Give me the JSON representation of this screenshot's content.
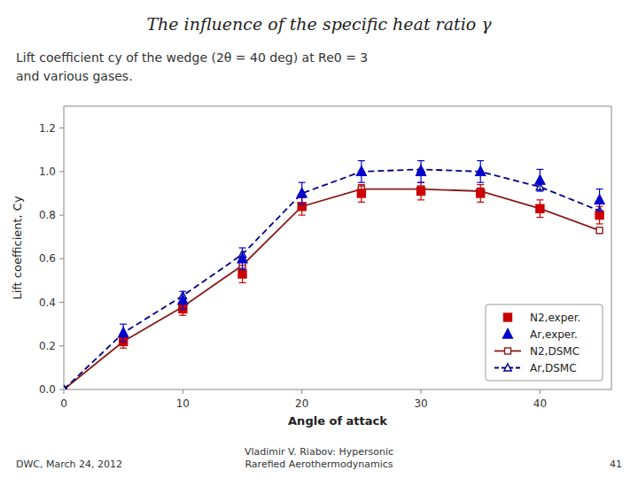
{
  "chart_data": {
    "type": "line",
    "title": "The influence of the specific heat ratio γ",
    "subtitle": [
      "Lift coefficient cy of the wedge (2θ = 40 deg) at Re0 = 3",
      "and various gases."
    ],
    "x_label": "Angle of attack",
    "y_label": "Lift coefficient, Cy",
    "xlim": [
      0,
      46
    ],
    "ylim": [
      0,
      1.3
    ],
    "xticks": [
      0,
      10,
      20,
      30,
      40
    ],
    "yticks": [
      {
        "value": 0,
        "label": "0.0"
      },
      0.2,
      0.4,
      0.6,
      0.8,
      {
        "value": 1.0,
        "label": "1.0"
      },
      1.2
    ],
    "grid": false,
    "legend": "lower right",
    "series": [
      {
        "name": "N2,exper.",
        "type": "scatter",
        "color": "#CC0000",
        "marker": "square",
        "x": [
          5,
          10,
          15,
          20,
          25,
          30,
          35,
          40,
          45
        ],
        "values": [
          0.22,
          0.37,
          0.53,
          0.84,
          0.9,
          0.91,
          0.9,
          0.83,
          0.8
        ],
        "yerr": [
          0.03,
          0.03,
          0.04,
          0.04,
          0.04,
          0.04,
          0.04,
          0.04,
          0.04
        ]
      },
      {
        "name": "Ar,exper.",
        "type": "scatter",
        "color": "#0000CC",
        "marker": "triangle",
        "x": [
          5,
          10,
          15,
          20,
          25,
          30,
          35,
          40,
          45
        ],
        "values": [
          0.26,
          0.41,
          0.6,
          0.9,
          1.0,
          1.0,
          1.0,
          0.96,
          0.87
        ],
        "yerr": [
          0.04,
          0.04,
          0.05,
          0.05,
          0.05,
          0.05,
          0.05,
          0.05,
          0.05
        ]
      },
      {
        "name": "N2,DSMC",
        "type": "line",
        "color": "#8B1A1A",
        "marker": "square",
        "line_style": "solid",
        "x": [
          0,
          5,
          10,
          15,
          20,
          25,
          30,
          35,
          40,
          45
        ],
        "values": [
          0.0,
          0.22,
          0.38,
          0.57,
          0.84,
          0.92,
          0.92,
          0.91,
          0.83,
          0.73
        ]
      },
      {
        "name": "Ar,DSMC",
        "type": "line",
        "color": "#00008B",
        "marker": "triangle",
        "line_style": "dashed",
        "x": [
          0,
          5,
          10,
          15,
          20,
          25,
          30,
          35,
          40,
          45
        ],
        "values": [
          0.0,
          0.26,
          0.43,
          0.62,
          0.9,
          1.0,
          1.01,
          1.0,
          0.93,
          0.82
        ]
      }
    ],
    "annotations": [
      "DWC, March 24, 2012",
      "Vladimir V. Riabov: Hypersonic",
      "Rarefied Aerothermodynamics",
      "41"
    ]
  }
}
